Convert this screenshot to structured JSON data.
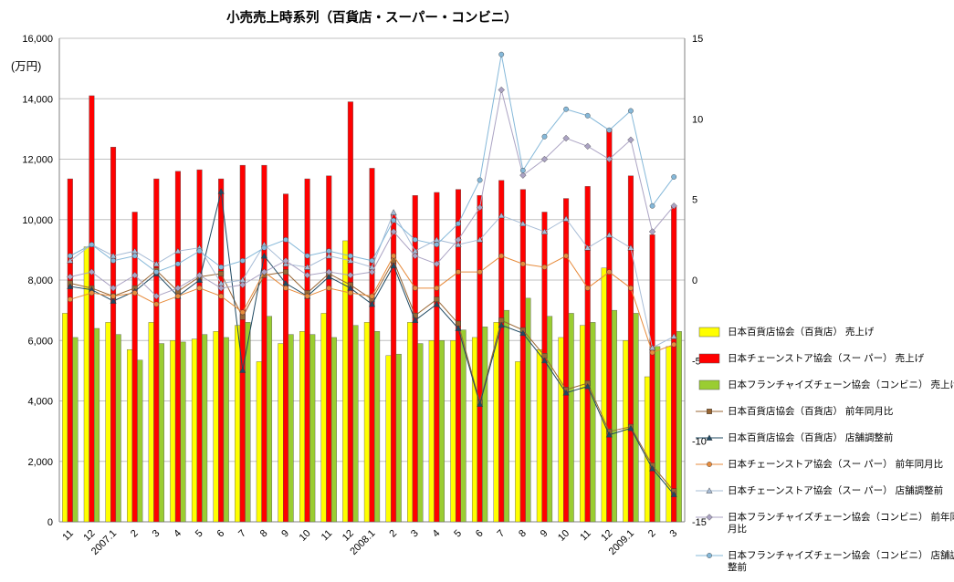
{
  "title": "小売売上時系列（百貨店・スーパー・コンビニ）",
  "left_axis": {
    "unit_label": "(万円)",
    "min": 0,
    "max": 16000,
    "step": 2000,
    "tick_labels": [
      "0",
      "2,000",
      "4,000",
      "6,000",
      "8,000",
      "10,000",
      "12,000",
      "14,000",
      "16,000"
    ]
  },
  "right_axis": {
    "min": -15,
    "max": 15,
    "step": 5,
    "tick_labels": [
      "-15",
      "-10",
      "-5",
      "0",
      "5",
      "10",
      "15"
    ]
  },
  "chart_data": {
    "type": "bar",
    "overlay_type": "line",
    "legend_position": "right",
    "grid": true,
    "ylim_left": [
      0,
      16000
    ],
    "ylim_right": [
      -15,
      15
    ],
    "categories": [
      "11",
      "12",
      "2007.1",
      "2",
      "3",
      "4",
      "5",
      "6",
      "7",
      "8",
      "9",
      "10",
      "11",
      "12",
      "2008.1",
      "2",
      "3",
      "4",
      "5",
      "6",
      "7",
      "8",
      "9",
      "10",
      "11",
      "12",
      "2009.1",
      "2",
      "3"
    ],
    "bar_series": [
      {
        "id": "dept-sales",
        "name": "日本百貨店協会（百貨店） 売上げ",
        "legend_lines": [
          "日本百貨店協会（百貨店） 売上げ"
        ],
        "color": "#FFFF00",
        "axis": "left",
        "values": [
          6900,
          9100,
          6600,
          5700,
          6600,
          6000,
          6050,
          6300,
          6500,
          5300,
          5900,
          6300,
          6900,
          9300,
          6600,
          5500,
          6600,
          6000,
          6000,
          6100,
          6600,
          5300,
          5700,
          6100,
          6500,
          8400,
          6000,
          4800,
          5800
        ]
      },
      {
        "id": "super-sales",
        "name": "日本チェーンストア協会（スー パー） 売上げ",
        "legend_lines": [
          "日本チェーンストア協会（スー パー） 売上げ"
        ],
        "color": "#FF0000",
        "axis": "left",
        "values": [
          11350,
          14100,
          12400,
          10250,
          11350,
          11600,
          11650,
          11350,
          11800,
          11800,
          10850,
          11350,
          11450,
          13900,
          11700,
          10150,
          10800,
          10900,
          11000,
          10800,
          11300,
          11000,
          10250,
          10700,
          11100,
          13000,
          11450,
          9500,
          10450
        ]
      },
      {
        "id": "conv-sales",
        "name": "日本フランチャイズチェーン協会（コンビニ） 売上げ",
        "legend_lines": [
          "日本フランチャイズチェーン協会（コンビニ） 売上げ"
        ],
        "color": "#9ACD32",
        "axis": "left",
        "values": [
          6100,
          6400,
          6200,
          5350,
          5900,
          5950,
          6200,
          6100,
          6600,
          6800,
          6200,
          6200,
          6100,
          6500,
          6300,
          5550,
          5900,
          6000,
          6350,
          6450,
          7000,
          7400,
          6800,
          6900,
          6600,
          7000,
          6900,
          5800,
          6300
        ]
      }
    ],
    "line_series": [
      {
        "id": "dept-yoy",
        "name": "日本百貨店協会（百貨店） 前年同月比",
        "legend_lines": [
          "日本百貨店協会（百貨店） 前年同月比"
        ],
        "color": "#996633",
        "marker": "square",
        "axis": "right",
        "values": [
          -0.2,
          -0.5,
          -1.0,
          -0.5,
          0.6,
          -0.7,
          0.2,
          0.4,
          -2.3,
          0.3,
          0.5,
          -0.8,
          0.4,
          -0.3,
          -1.2,
          1.2,
          -2.2,
          -1.2,
          -2.7,
          -7.6,
          -2.5,
          -3.1,
          -4.7,
          -6.8,
          -6.4,
          -9.4,
          -9.1,
          -11.5,
          -13.1
        ]
      },
      {
        "id": "dept-adj",
        "name": "日本百貨店協会（百貨店） 店舗調整前",
        "legend_lines": [
          "日本百貨店協会（百貨店） 店舗調整前"
        ],
        "color": "#1F4962",
        "marker": "triangle",
        "axis": "right",
        "values": [
          -0.4,
          -0.6,
          -1.3,
          -0.7,
          0.4,
          -1.0,
          0.0,
          5.5,
          -5.6,
          1.5,
          -0.2,
          -1.0,
          0.2,
          -0.5,
          -1.5,
          0.9,
          -2.5,
          -1.5,
          -3.0,
          -7.7,
          -2.8,
          -3.3,
          -5.0,
          -7.0,
          -6.6,
          -9.6,
          -9.2,
          -11.7,
          -13.3
        ]
      },
      {
        "id": "super-yoy",
        "name": "日本チェーンストア協会（スー パー） 前年同月比",
        "legend_lines": [
          "日本チェーンストア協会（スー パー） 前年同月比"
        ],
        "color": "#E78B3C",
        "marker": "circle",
        "axis": "right",
        "values": [
          -1.2,
          -0.8,
          -1.0,
          -0.8,
          -1.5,
          -1.0,
          -0.5,
          -1.0,
          -2.0,
          0.5,
          -0.5,
          -1.0,
          -0.5,
          -0.8,
          -1.0,
          1.5,
          -0.5,
          -0.5,
          0.5,
          0.5,
          1.5,
          1.0,
          0.8,
          1.5,
          -0.5,
          0.5,
          -0.5,
          -4.5,
          -4.0
        ]
      },
      {
        "id": "super-adj",
        "name": "日本チェーンストア協会（スー パー） 店舗調整前",
        "legend_lines": [
          "日本チェーンストア協会（スー パー） 店舗調整前"
        ],
        "color": "#A7BCD6",
        "marker": "triangle",
        "axis": "right",
        "values": [
          1.2,
          2.2,
          1.5,
          1.8,
          1.0,
          1.8,
          2.0,
          -0.2,
          0.0,
          2.2,
          1.0,
          0.8,
          1.5,
          1.2,
          0.8,
          4.2,
          1.8,
          2.5,
          2.2,
          2.5,
          4.0,
          3.5,
          3.0,
          3.8,
          2.0,
          2.8,
          2.0,
          -4.2,
          -3.5
        ]
      },
      {
        "id": "conv-yoy",
        "name": "日本フランチャイズチェーン協会（コンビニ） 前年同月比",
        "legend_lines": [
          "日本フランチャイズチェーン協会（コンビニ） 前年同",
          "月比"
        ],
        "color": "#ABA3C3",
        "marker": "diamond",
        "axis": "right",
        "values": [
          0.2,
          0.5,
          -0.5,
          0.3,
          -1.0,
          -0.5,
          0.3,
          -0.5,
          -0.3,
          0.5,
          1.2,
          0.3,
          0.5,
          0.3,
          0.5,
          3.0,
          1.5,
          1.0,
          2.5,
          4.5,
          11.8,
          6.5,
          7.5,
          8.8,
          8.3,
          7.5,
          8.7,
          3.0,
          4.6
        ]
      },
      {
        "id": "conv-adj",
        "name": "日本フランチャイズチェーン協会（コンビニ） 店舗調整前",
        "legend_lines": [
          "日本フランチャイズチェーン協会（コンビニ） 店舗調",
          "整前"
        ],
        "color": "#85B8D9",
        "marker": "circle",
        "axis": "right",
        "values": [
          1.5,
          2.2,
          1.2,
          1.5,
          0.5,
          1.0,
          1.8,
          0.8,
          1.2,
          2.0,
          2.5,
          1.5,
          1.8,
          1.5,
          1.2,
          3.7,
          2.5,
          2.2,
          3.5,
          6.2,
          14.0,
          6.8,
          8.9,
          10.6,
          10.2,
          9.3,
          10.5,
          4.6,
          6.4
        ]
      }
    ]
  }
}
